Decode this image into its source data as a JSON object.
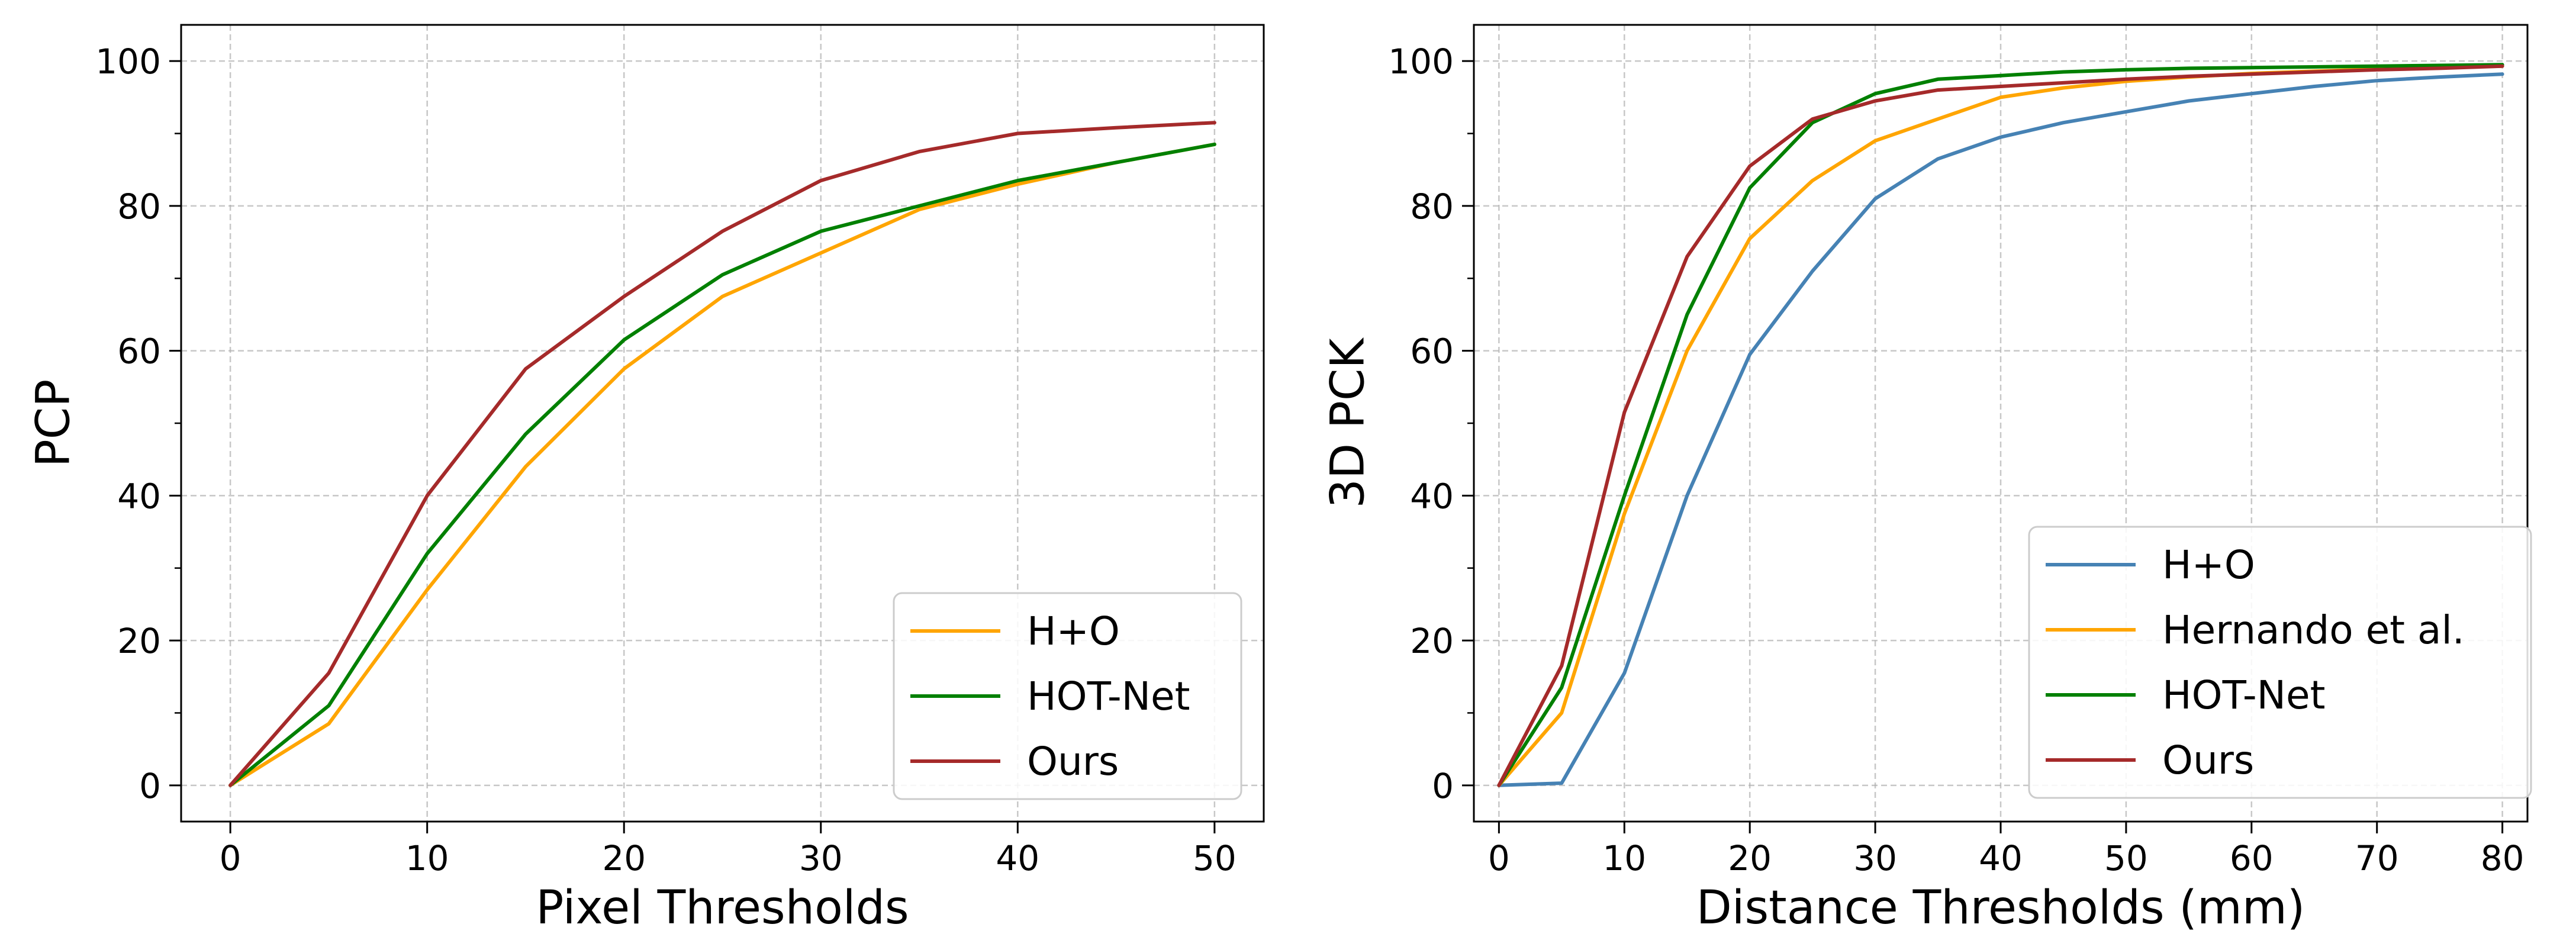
{
  "chart_data": [
    {
      "type": "line",
      "title": "",
      "xlabel": "Pixel Thresholds",
      "ylabel": "PCP",
      "xlim": [
        -2.5,
        52.5
      ],
      "ylim": [
        -5,
        105
      ],
      "xticks": [
        0,
        10,
        20,
        30,
        40,
        50
      ],
      "yticks": [
        0,
        20,
        40,
        60,
        80,
        100
      ],
      "x_tick_labels": [
        "0",
        "10",
        "20",
        "30",
        "40",
        "50"
      ],
      "y_tick_labels": [
        "0",
        "20",
        "40",
        "60",
        "80",
        "100"
      ],
      "grid": true,
      "legend_position": "lower-right",
      "x": [
        0,
        5,
        10,
        15,
        20,
        25,
        30,
        35,
        40,
        45,
        50
      ],
      "series": [
        {
          "name": "H+O",
          "color": "#ffa500",
          "values": [
            0,
            8.5,
            27,
            44,
            57.5,
            67.5,
            73.5,
            79.5,
            83,
            86,
            88.5
          ]
        },
        {
          "name": "HOT-Net",
          "color": "#008000",
          "values": [
            0,
            11,
            32,
            48.5,
            61.5,
            70.5,
            76.5,
            80,
            83.5,
            86,
            88.5
          ]
        },
        {
          "name": "Ours",
          "color": "#a52a2a",
          "values": [
            0,
            15.5,
            40,
            57.5,
            67.5,
            76.5,
            83.5,
            87.5,
            90,
            90.8,
            91.5
          ]
        }
      ]
    },
    {
      "type": "line",
      "title": "",
      "xlabel": "Distance Thresholds (mm)",
      "ylabel": "3D PCK",
      "xlim": [
        -2,
        82
      ],
      "ylim": [
        -5,
        105
      ],
      "xticks": [
        0,
        10,
        20,
        30,
        40,
        50,
        60,
        70,
        80
      ],
      "yticks": [
        0,
        20,
        40,
        60,
        80,
        100
      ],
      "x_tick_labels": [
        "0",
        "10",
        "20",
        "30",
        "40",
        "50",
        "60",
        "70",
        "80"
      ],
      "y_tick_labels": [
        "0",
        "20",
        "40",
        "60",
        "80",
        "100"
      ],
      "grid": true,
      "legend_position": "lower-right",
      "x": [
        0,
        5,
        10,
        15,
        20,
        25,
        30,
        35,
        40,
        45,
        50,
        55,
        60,
        65,
        70,
        75,
        80
      ],
      "series": [
        {
          "name": "H+O",
          "color": "#4682b4",
          "values": [
            0,
            0.3,
            15.5,
            40,
            59.5,
            71,
            81,
            86.5,
            89.5,
            91.5,
            93,
            94.5,
            95.5,
            96.5,
            97.3,
            97.8,
            98.2
          ]
        },
        {
          "name": "Hernando et al.",
          "color": "#ffa500",
          "values": [
            0,
            10,
            37.5,
            60,
            75.5,
            83.5,
            89,
            92,
            95,
            96.3,
            97.2,
            97.8,
            98.3,
            98.6,
            98.9,
            99.1,
            99.3
          ]
        },
        {
          "name": "HOT-Net",
          "color": "#008000",
          "values": [
            0,
            13.5,
            40,
            65,
            82.5,
            91.5,
            95.5,
            97.5,
            98,
            98.5,
            98.8,
            99,
            99.1,
            99.2,
            99.3,
            99.4,
            99.5
          ]
        },
        {
          "name": "Ours",
          "color": "#a52a2a",
          "values": [
            0,
            16.5,
            51.5,
            73,
            85.5,
            92,
            94.5,
            96,
            96.5,
            97,
            97.5,
            97.9,
            98.2,
            98.5,
            98.8,
            99,
            99.3
          ]
        }
      ]
    }
  ]
}
